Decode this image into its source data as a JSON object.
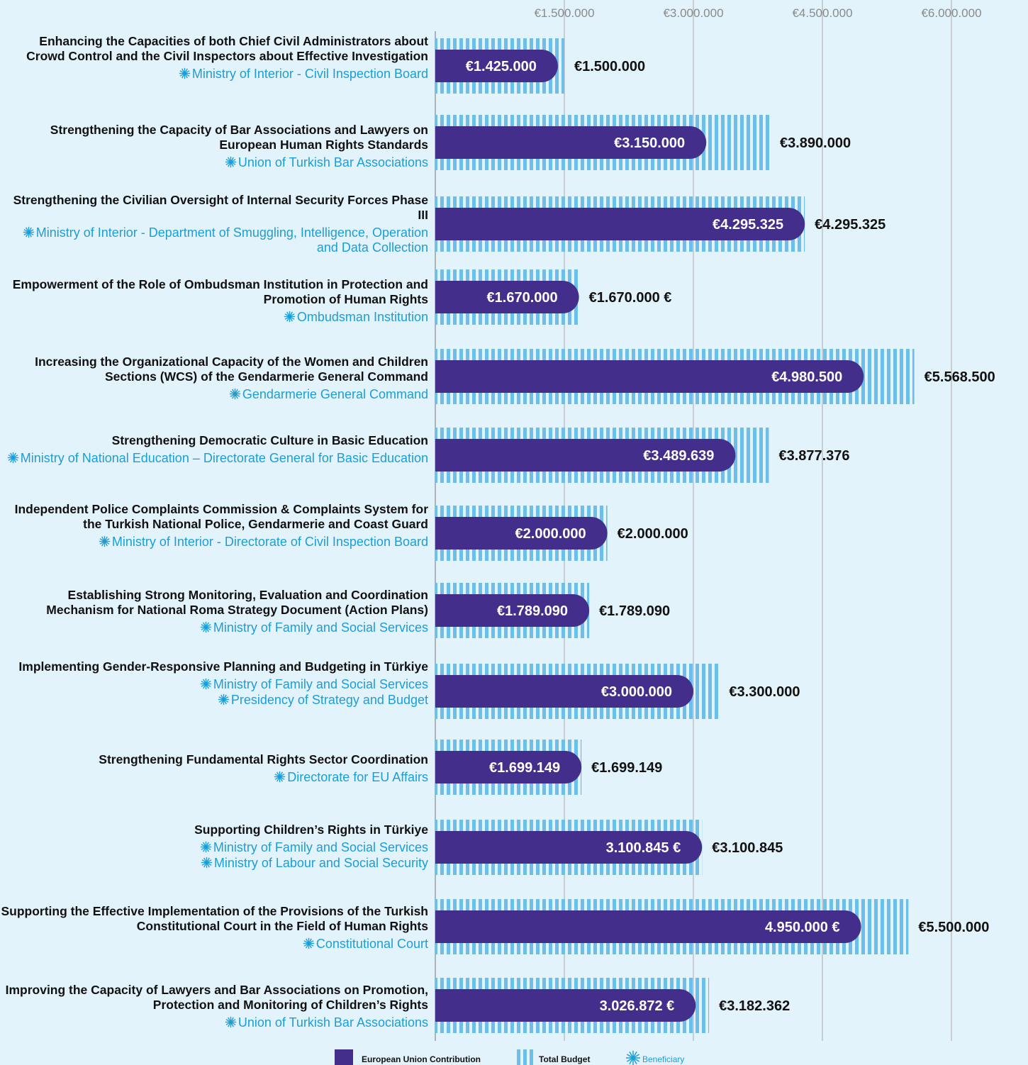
{
  "chart_data": {
    "type": "bar",
    "categories": [
      "Enhancing the Capacities of both Chief Civil Administrators about Crowd Control and the Civil Inspectors about Effective Investigation",
      "Strengthening the Capacity of Bar Associations and Lawyers on European Human Rights Standards",
      "Strengthening the Civilian Oversight of Internal Security Forces Phase III",
      "Empowerment of the Role of Ombudsman Institution in Protection and Promotion of Human Rights",
      "Increasing the Organizational Capacity of the Women and Children Sections (WCS) of the Gendarmerie General Command",
      "Strengthening Democratic Culture in Basic Education",
      "Independent Police Complaints Commission & Complaints System for the Turkish National Police, Gendarmerie and Coast Guard",
      "Establishing Strong Monitoring, Evaluation and Coordination Mechanism for National Roma Strategy Document (Action Plans)",
      "Implementing Gender-Responsive Planning and Budgeting in Türkiye",
      "Strengthening Fundamental Rights Sector Coordination",
      "Supporting Children’s Rights in Türkiye",
      "Supporting the Effective Implementation of the Provisions of the Turkish Constitutional Court in the Field of Human Rights",
      "Improving the Capacity of Lawyers and Bar Associations on Promotion, Protection and Monitoring of Children’s Rights"
    ],
    "beneficiaries": [
      [
        "Ministry of Interior - Civil Inspection Board"
      ],
      [
        "Union of Turkish Bar Associations"
      ],
      [
        "Ministry of Interior - Department of Smuggling, Intelligence, Operation and Data Collection"
      ],
      [
        "Ombudsman Institution"
      ],
      [
        "Gendarmerie General Command"
      ],
      [
        "Ministry of National Education – Directorate General for Basic Education"
      ],
      [
        "Ministry of Interior - Directorate of Civil Inspection Board"
      ],
      [
        "Ministry of Family and Social Services"
      ],
      [
        "Ministry of Family and Social Services",
        "Presidency of Strategy and Budget"
      ],
      [
        "Directorate for EU Affairs"
      ],
      [
        "Ministry of Family and Social Services",
        "Ministry of Labour and Social Security"
      ],
      [
        "Constitutional Court"
      ],
      [
        "Union of Turkish Bar Associations"
      ]
    ],
    "series": [
      {
        "name": "European Union Contribution",
        "color": "#432f8b",
        "values": [
          1425000,
          3150000,
          4295325,
          1670000,
          4980500,
          3489639,
          2000000,
          1789090,
          3000000,
          1699149,
          3100845,
          4950000,
          3026872
        ],
        "value_labels": [
          "€1.425.000",
          "€3.150.000",
          "€4.295.325",
          "€1.670.000",
          "€4.980.500",
          "€3.489.639",
          "€2.000.000",
          "€1.789.090",
          "€3.000.000",
          "€1.699.149",
          "3.100.845 €",
          "4.950.000 €",
          "3.026.872 €"
        ]
      },
      {
        "name": "Total Budget",
        "color": "#6cbfe8",
        "values": [
          1500000,
          3890000,
          4295325,
          1670000,
          5568500,
          3877376,
          2000000,
          1789090,
          3300000,
          1699149,
          3100845,
          5500000,
          3182362
        ],
        "value_labels": [
          "€1.500.000",
          "€3.890.000",
          "€4.295.325",
          "€1.670.000 €",
          "€5.568.500",
          "€3.877.376",
          "€2.000.000",
          "€1.789.090",
          "€3.300.000",
          "€1.699.149",
          "€3.100.845",
          "€5.500.000",
          "€3.182.362"
        ]
      }
    ],
    "beneficiary_legend": "Beneficiary",
    "beneficiary_color": "#1a9ed8",
    "xlim": [
      0,
      6000000
    ],
    "xticks": [
      {
        "value": 1500000,
        "label": "€1.500.000"
      },
      {
        "value": 3000000,
        "label": "€3.000.000"
      },
      {
        "value": 4500000,
        "label": "€4.500.000"
      },
      {
        "value": 6000000,
        "label": "€6.000.000"
      }
    ],
    "grid": true
  }
}
